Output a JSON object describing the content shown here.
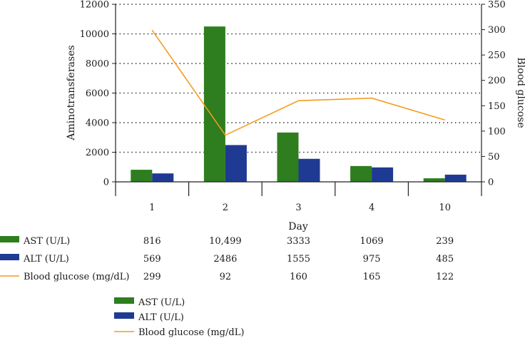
{
  "chart_data": {
    "type": "bar",
    "categories": [
      "1",
      "2",
      "3",
      "4",
      "10"
    ],
    "xlabel": "Day",
    "ylabel": "Aminotransferases",
    "y2label": "Blood glucose",
    "ylim": [
      0,
      12000
    ],
    "y2lim": [
      0,
      350
    ],
    "y_ticks": [
      "0",
      "2000",
      "4000",
      "6000",
      "8000",
      "10000",
      "12000"
    ],
    "y2_ticks": [
      "0",
      "50",
      "100",
      "150",
      "200",
      "250",
      "300",
      "350"
    ],
    "grid": true,
    "series": [
      {
        "name": "AST (U/L)",
        "kind": "bar",
        "axis": "left",
        "color": "#2e7d1f",
        "values": [
          816,
          10499,
          3333,
          1069,
          239
        ],
        "labels": [
          "816",
          "10,499",
          "3333",
          "1069",
          "239"
        ]
      },
      {
        "name": "ALT (U/L)",
        "kind": "bar",
        "axis": "left",
        "color": "#1f3a93",
        "values": [
          569,
          2486,
          1555,
          975,
          485
        ],
        "labels": [
          "569",
          "2486",
          "1555",
          "975",
          "485"
        ]
      },
      {
        "name": "Blood glucose (mg/dL)",
        "kind": "line",
        "axis": "right",
        "color": "#f39c1f",
        "values": [
          299,
          92,
          160,
          165,
          122
        ],
        "labels": [
          "299",
          "92",
          "160",
          "165",
          "122"
        ]
      }
    ],
    "legend": [
      "AST (U/L)",
      "ALT (U/L)",
      "Blood glucose (mg/dL)"
    ]
  }
}
